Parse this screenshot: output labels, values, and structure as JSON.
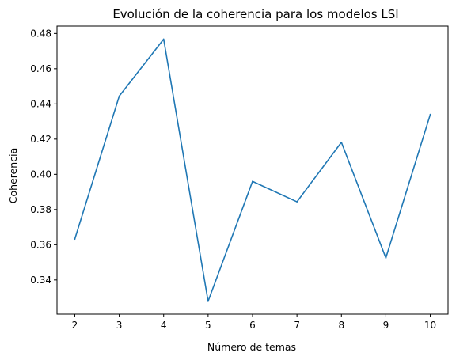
{
  "chart_data": {
    "type": "line",
    "title": "Evolución de la coherencia para los modelos LSI",
    "xlabel": "Número de temas",
    "ylabel": "Coherencia",
    "xlim": [
      1.6,
      10.4
    ],
    "ylim": [
      0.3206,
      0.4842
    ],
    "xticks": [
      2,
      3,
      4,
      5,
      6,
      7,
      8,
      9,
      10
    ],
    "yticks": [
      0.34,
      0.36,
      0.38,
      0.4,
      0.42,
      0.44,
      0.46,
      0.48
    ],
    "ytick_labels": [
      "0.34",
      "0.36",
      "0.38",
      "0.40",
      "0.42",
      "0.44",
      "0.46",
      "0.48"
    ],
    "grid": false,
    "series": [
      {
        "color": "#1f77b4",
        "x": [
          2,
          3,
          4,
          5,
          6,
          7,
          8,
          9,
          10
        ],
        "y": [
          0.3632,
          0.4444,
          0.4768,
          0.3279,
          0.396,
          0.3844,
          0.4182,
          0.3525,
          0.434
        ]
      }
    ]
  }
}
